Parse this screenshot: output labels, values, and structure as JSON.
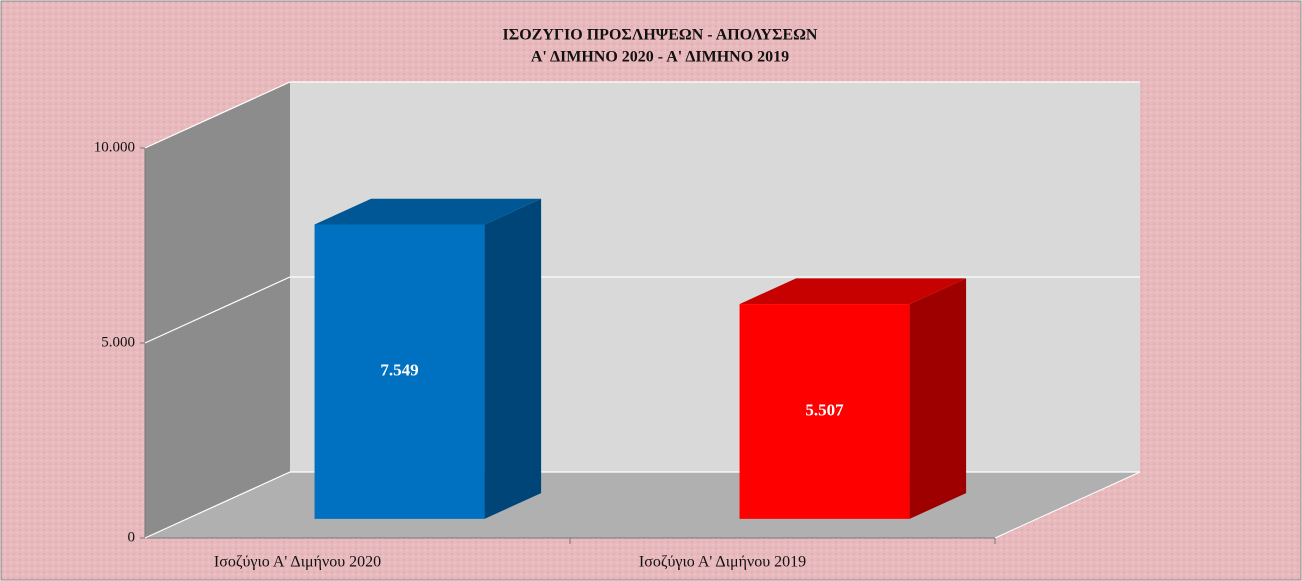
{
  "chart_data": {
    "type": "bar3d",
    "title": "ΙΣΟΖΥΓΙΟ  ΠΡΟΣΛΗΨΕΩΝ  -  ΑΠΟΛΥΣΕΩΝ",
    "subtitle": "Α' ΔΙΜΗΝΟ 2020  -  Α' ΔΙΜΗΝΟ 2019",
    "categories": [
      "Ισοζύγιο Α' Διμήνου 2020",
      "Ισοζύγιο Α' Διμήνου 2019"
    ],
    "values": [
      7549,
      5507
    ],
    "value_labels": [
      "7.549",
      "5.507"
    ],
    "colors": [
      "#0070c0",
      "#ff0000"
    ],
    "ylim": [
      0,
      10000
    ],
    "yticks": [
      0,
      {
        "value": 5000,
        "label": "5.000"
      },
      {
        "value": 10000,
        "label": "10.000"
      }
    ],
    "grid": true
  }
}
